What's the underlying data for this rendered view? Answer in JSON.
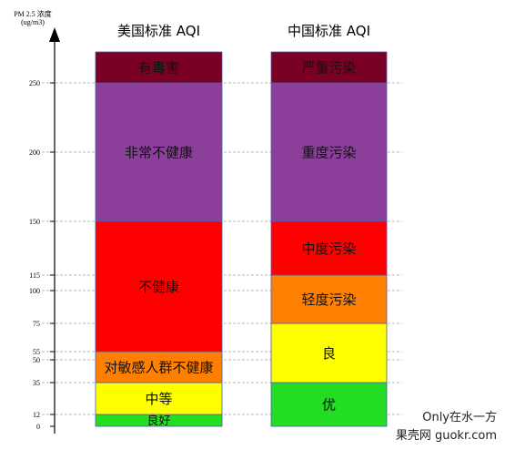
{
  "chart_data": {
    "type": "bar",
    "y_axis_title": [
      "PM 2.5 浓度",
      "(ug/m3)"
    ],
    "ylim": [
      0,
      272
    ],
    "yticks": [
      0,
      12,
      35,
      50,
      55,
      75,
      100,
      115,
      150,
      200,
      250
    ],
    "columns": [
      {
        "title": "美国标准 AQI",
        "segments": [
          {
            "from": 0,
            "to": 12,
            "label": "良好",
            "color": "#22dd22"
          },
          {
            "from": 12,
            "to": 35,
            "label": "中等",
            "color": "#ffff00"
          },
          {
            "from": 35,
            "to": 55,
            "label": "对敏感人群不健康",
            "color": "#ff8000"
          },
          {
            "from": 55,
            "to": 150,
            "label": "不健康",
            "color": "#ff0000"
          },
          {
            "from": 150,
            "to": 250,
            "label": "非常不健康",
            "color": "#8b3f9b"
          },
          {
            "from": 250,
            "to": 272,
            "label": "有毒害",
            "color": "#7a0026"
          }
        ]
      },
      {
        "title": "中国标准 AQI",
        "segments": [
          {
            "from": 0,
            "to": 35,
            "label": "优",
            "color": "#22dd22"
          },
          {
            "from": 35,
            "to": 75,
            "label": "良",
            "color": "#ffff00"
          },
          {
            "from": 75,
            "to": 115,
            "label": "轻度污染",
            "color": "#ff8000"
          },
          {
            "from": 115,
            "to": 150,
            "label": "中度污染",
            "color": "#ff0000"
          },
          {
            "from": 150,
            "to": 250,
            "label": "重度污染",
            "color": "#8b3f9b"
          },
          {
            "from": 250,
            "to": 272,
            "label": "严重污染",
            "color": "#7a0026"
          }
        ]
      }
    ],
    "gridlines": "dashed"
  },
  "watermark": {
    "line1": "Only在水一方",
    "line2": "果壳网 guokr.com"
  }
}
